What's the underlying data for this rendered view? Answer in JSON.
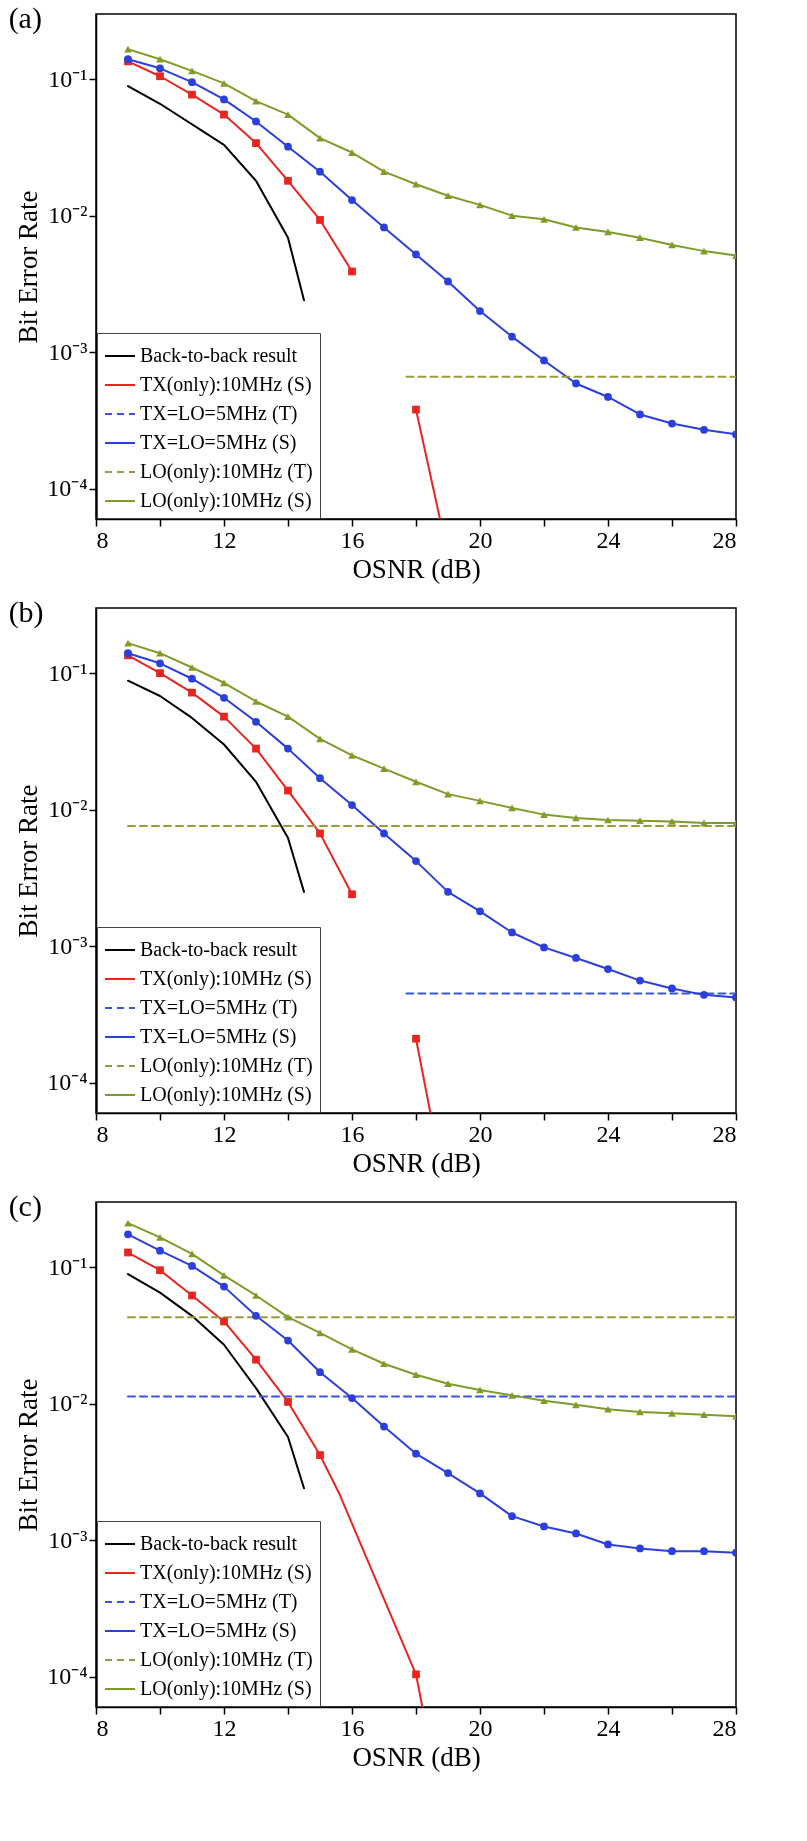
{
  "chart_data": [
    {
      "type": "line",
      "title": "(a)",
      "xlabel": "OSNR (dB)",
      "ylabel": "Bit Error Rate",
      "xlim": [
        8,
        28
      ],
      "ylim": [
        6e-05,
        0.3
      ],
      "log": "y",
      "grid": false,
      "legend": "bottom left",
      "xticks": [
        8,
        {
          "value": 10,
          "label": null
        },
        12,
        {
          "value": 14,
          "label": null
        },
        16,
        {
          "value": 18,
          "label": null
        },
        20,
        {
          "value": 22,
          "label": null
        },
        24,
        {
          "value": 26,
          "label": null
        },
        28
      ],
      "yticks": [
        {
          "value": 0.0001,
          "label": "10⁻⁴"
        },
        {
          "value": 0.001,
          "label": "10⁻³"
        },
        {
          "value": 0.01,
          "label": "10⁻²"
        },
        {
          "value": 0.1,
          "label": "10⁻¹"
        }
      ],
      "series": [
        {
          "name": "Back-to-back result",
          "color": "#000000",
          "marker": "none",
          "line_style": "solid",
          "x": [
            9,
            10,
            12,
            13,
            14,
            14.5
          ],
          "values": [
            0.089,
            0.066,
            0.033,
            0.018,
            0.0069,
            0.0024
          ]
        },
        {
          "name": "TX(only):10MHz (S)",
          "color": "#e8251f",
          "marker": "square",
          "line_style": "solid",
          "x": [
            9,
            10,
            11,
            12,
            13,
            14,
            15,
            16,
            17,
            18,
            18.75
          ],
          "values": [
            0.135,
            0.105,
            0.077,
            0.055,
            0.034,
            0.018,
            0.0093,
            0.0039,
            null,
            0.00038,
            6e-05
          ]
        },
        {
          "name": "TX=LO=5MHz    (T)",
          "color": "#3a55e0",
          "marker": "none",
          "line_style": "dashed"
        },
        {
          "name": "TX=LO=5MHz    (S)",
          "color": "#2a3fdc",
          "marker": "circle",
          "line_style": "solid",
          "x": [
            9,
            10,
            11,
            12,
            13,
            14,
            15,
            16,
            17,
            18,
            19,
            20,
            21,
            22,
            23,
            24,
            25,
            26,
            27,
            28
          ],
          "values": [
            0.14,
            0.12,
            0.095,
            0.071,
            0.049,
            0.032,
            0.021,
            0.013,
            0.0082,
            0.0052,
            0.0033,
            0.002,
            0.0013,
            0.00087,
            0.00059,
            0.00047,
            0.00035,
            0.0003,
            0.00027,
            0.00025
          ]
        },
        {
          "name": "LO(only):10MHz (T)",
          "color": "#9a9a3a",
          "marker": "none",
          "line_style": "dashed",
          "x": [
            17.7,
            28
          ],
          "values": [
            0.00066,
            0.00066
          ]
        },
        {
          "name": "LO(only):10MHz (S)",
          "color": "#7f9c2a",
          "marker": "triangle",
          "line_style": "solid",
          "x": [
            9,
            10,
            11,
            12,
            13,
            14,
            15,
            16,
            17,
            18,
            19,
            20,
            21,
            22,
            23,
            24,
            25,
            26,
            27,
            28
          ],
          "values": [
            0.166,
            0.14,
            0.115,
            0.093,
            0.069,
            0.055,
            0.037,
            0.029,
            0.021,
            0.017,
            0.014,
            0.012,
            0.01,
            0.0094,
            0.0082,
            0.0076,
            0.0069,
            0.0061,
            0.0055,
            0.0051
          ]
        }
      ]
    },
    {
      "type": "line",
      "title": "(b)",
      "xlabel": "OSNR (dB)",
      "ylabel": "Bit Error Rate",
      "xlim": [
        8,
        28
      ],
      "ylim": [
        6e-05,
        0.3
      ],
      "log": "y",
      "grid": false,
      "legend": "bottom left",
      "xticks": [
        8,
        {
          "value": 10,
          "label": null
        },
        12,
        {
          "value": 14,
          "label": null
        },
        16,
        {
          "value": 18,
          "label": null
        },
        20,
        {
          "value": 22,
          "label": null
        },
        24,
        {
          "value": 26,
          "label": null
        },
        28
      ],
      "yticks": [
        {
          "value": 0.0001,
          "label": "10⁻⁴"
        },
        {
          "value": 0.001,
          "label": "10⁻³"
        },
        {
          "value": 0.01,
          "label": "10⁻²"
        },
        {
          "value": 0.1,
          "label": "10⁻¹"
        }
      ],
      "series": [
        {
          "name": "Back-to-back result",
          "color": "#000000",
          "marker": "none",
          "line_style": "solid",
          "x": [
            9,
            10,
            11,
            12,
            13,
            14,
            14.5
          ],
          "values": [
            0.088,
            0.068,
            0.047,
            0.03,
            0.016,
            0.0062,
            0.0025
          ]
        },
        {
          "name": "TX(only):10MHz (S)",
          "color": "#e8251f",
          "marker": "square",
          "line_style": "solid",
          "x": [
            9,
            10,
            11,
            12,
            13,
            14,
            15,
            16,
            17,
            18,
            18.45
          ],
          "values": [
            0.135,
            0.1,
            0.072,
            0.048,
            0.028,
            0.0138,
            0.0067,
            0.0024,
            null,
            0.00021,
            6e-05
          ]
        },
        {
          "name": "TX=LO=5MHz    (T)",
          "color": "#3a55e0",
          "marker": "none",
          "line_style": "dashed",
          "x": [
            17.7,
            28
          ],
          "values": [
            0.00045,
            0.00045
          ]
        },
        {
          "name": "TX=LO=5MHz    (S)",
          "color": "#2a3fdc",
          "marker": "circle",
          "line_style": "solid",
          "x": [
            9,
            10,
            11,
            12,
            13,
            14,
            15,
            16,
            17,
            18,
            19,
            20,
            21,
            22,
            23,
            24,
            25,
            26,
            27,
            28
          ],
          "values": [
            0.14,
            0.118,
            0.091,
            0.066,
            0.044,
            0.028,
            0.017,
            0.0108,
            0.0067,
            0.0042,
            0.0025,
            0.0018,
            0.00126,
            0.00098,
            0.00082,
            0.00068,
            0.00056,
            0.00049,
            0.00044,
            0.00042
          ]
        },
        {
          "name": "LO(only):10MHz (T)",
          "color": "#9a9a3a",
          "marker": "none",
          "line_style": "dashed",
          "x": [
            9,
            28
          ],
          "values": [
            0.0076,
            0.0076
          ]
        },
        {
          "name": "LO(only):10MHz (S)",
          "color": "#7f9c2a",
          "marker": "triangle",
          "line_style": "solid",
          "x": [
            9,
            10,
            11,
            12,
            13,
            14,
            15,
            16,
            17,
            18,
            19,
            20,
            21,
            22,
            23,
            24,
            25,
            26,
            27,
            28
          ],
          "values": [
            0.166,
            0.14,
            0.11,
            0.085,
            0.062,
            0.048,
            0.033,
            0.025,
            0.02,
            0.016,
            0.013,
            0.0116,
            0.0103,
            0.0092,
            0.0087,
            0.0084,
            0.0083,
            0.0082,
            0.008,
            0.008
          ]
        }
      ]
    },
    {
      "type": "line",
      "title": "(c)",
      "xlabel": "OSNR (dB)",
      "ylabel": "Bit Error Rate",
      "xlim": [
        8,
        28
      ],
      "ylim": [
        6e-05,
        0.3
      ],
      "log": "y",
      "grid": false,
      "legend": "bottom left",
      "xticks": [
        8,
        {
          "value": 10,
          "label": null
        },
        12,
        {
          "value": 14,
          "label": null
        },
        16,
        {
          "value": 18,
          "label": null
        },
        20,
        {
          "value": 22,
          "label": null
        },
        24,
        {
          "value": 26,
          "label": null
        },
        28
      ],
      "yticks": [
        {
          "value": 0.0001,
          "label": "10⁻⁴"
        },
        {
          "value": 0.001,
          "label": "10⁻³"
        },
        {
          "value": 0.01,
          "label": "10⁻²"
        },
        {
          "value": 0.1,
          "label": "10⁻¹"
        }
      ],
      "series": [
        {
          "name": "Back-to-back result",
          "color": "#000000",
          "marker": "none",
          "line_style": "solid",
          "x": [
            9,
            10,
            11,
            12,
            13,
            14,
            14.5
          ],
          "values": [
            0.089,
            0.065,
            0.044,
            0.027,
            0.013,
            0.0057,
            0.0024
          ]
        },
        {
          "name": "TX(only):10MHz (S)",
          "color": "#e8251f",
          "marker": "square",
          "line_style": "solid",
          "x": [
            9,
            10,
            11,
            12,
            13,
            14,
            15,
            15.6,
            18,
            18.2
          ],
          "values": [
            0.128,
            0.095,
            0.062,
            0.04,
            0.021,
            0.0103,
            0.0042,
            0.0022,
            0.000104,
            6e-05
          ]
        },
        {
          "name": "TX=LO=5MHz    (T)",
          "color": "#3a55e0",
          "marker": "none",
          "line_style": "dashed",
          "x": [
            9,
            28
          ],
          "values": [
            0.0113,
            0.0113
          ]
        },
        {
          "name": "TX=LO=5MHz    (S)",
          "color": "#2a3fdc",
          "marker": "circle",
          "line_style": "solid",
          "x": [
            9,
            10,
            11,
            12,
            13,
            14,
            15,
            16,
            17,
            18,
            19,
            20,
            21,
            22,
            23,
            24,
            25,
            26,
            27,
            28
          ],
          "values": [
            0.174,
            0.132,
            0.102,
            0.072,
            0.044,
            0.029,
            0.017,
            0.011,
            0.0068,
            0.0043,
            0.0031,
            0.0022,
            0.0015,
            0.00126,
            0.00112,
            0.00093,
            0.00087,
            0.00083,
            0.00083,
            0.00081
          ]
        },
        {
          "name": "LO(only):10MHz (T)",
          "color": "#9a9a3a",
          "marker": "none",
          "line_style": "dashed",
          "x": [
            9,
            28
          ],
          "values": [
            0.043,
            0.043
          ]
        },
        {
          "name": "LO(only):10MHz (S)",
          "color": "#7f9c2a",
          "marker": "triangle",
          "line_style": "solid",
          "x": [
            9,
            10,
            11,
            12,
            13,
            14,
            15,
            16,
            17,
            18,
            19,
            20,
            21,
            22,
            23,
            24,
            25,
            26,
            27,
            28
          ],
          "values": [
            0.21,
            0.165,
            0.125,
            0.087,
            0.062,
            0.043,
            0.033,
            0.025,
            0.0196,
            0.0163,
            0.014,
            0.0126,
            0.0115,
            0.0105,
            0.0098,
            0.0091,
            0.0087,
            0.0085,
            0.0083,
            0.0081
          ]
        }
      ]
    }
  ]
}
